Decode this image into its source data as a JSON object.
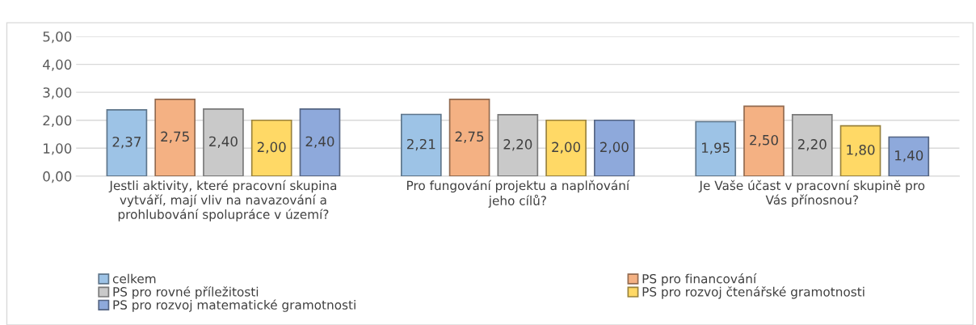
{
  "chart_data": {
    "type": "bar",
    "categories": [
      "Jestli aktivity, které pracovní skupina\nvytváří, mají vliv na navazování a\nprohlubování spolupráce v území?",
      "Pro fungování projektu a naplňování\njeho cílů?",
      "Je Vaše účast v pracovní skupině pro\nVás přínosnou?"
    ],
    "series": [
      {
        "name": "celkem",
        "color": "#9dc3e6",
        "values": [
          2.37,
          2.21,
          1.95
        ],
        "value_labels": [
          "2,37",
          "2,21",
          "1,95"
        ]
      },
      {
        "name": "PS pro financování",
        "color": "#f4b183",
        "values": [
          2.75,
          2.75,
          2.5
        ],
        "value_labels": [
          "2,75",
          "2,75",
          "2,50"
        ]
      },
      {
        "name": "PS pro rovné příležitosti",
        "color": "#c9c9c9",
        "values": [
          2.4,
          2.2,
          2.2
        ],
        "value_labels": [
          "2,40",
          "2,20",
          "2,20"
        ]
      },
      {
        "name": "PS pro rozvoj čtenářské gramotnosti",
        "color": "#ffd966",
        "values": [
          2.0,
          2.0,
          1.8
        ],
        "value_labels": [
          "2,00",
          "2,00",
          "1,80"
        ]
      },
      {
        "name": "PS pro rozvoj matematické gramotnosti",
        "color": "#8ea9db",
        "values": [
          2.4,
          2.0,
          1.4
        ],
        "value_labels": [
          "2,40",
          "2,00",
          "1,40"
        ]
      }
    ],
    "ylim": [
      0,
      5
    ],
    "yticks": [
      {
        "value": 0,
        "label": "0,00"
      },
      {
        "value": 1,
        "label": "1,00"
      },
      {
        "value": 2,
        "label": "2,00"
      },
      {
        "value": 3,
        "label": "3,00"
      },
      {
        "value": 4,
        "label": "4,00"
      },
      {
        "value": 5,
        "label": "5,00"
      }
    ],
    "grid": "y",
    "legend": "bottom"
  }
}
